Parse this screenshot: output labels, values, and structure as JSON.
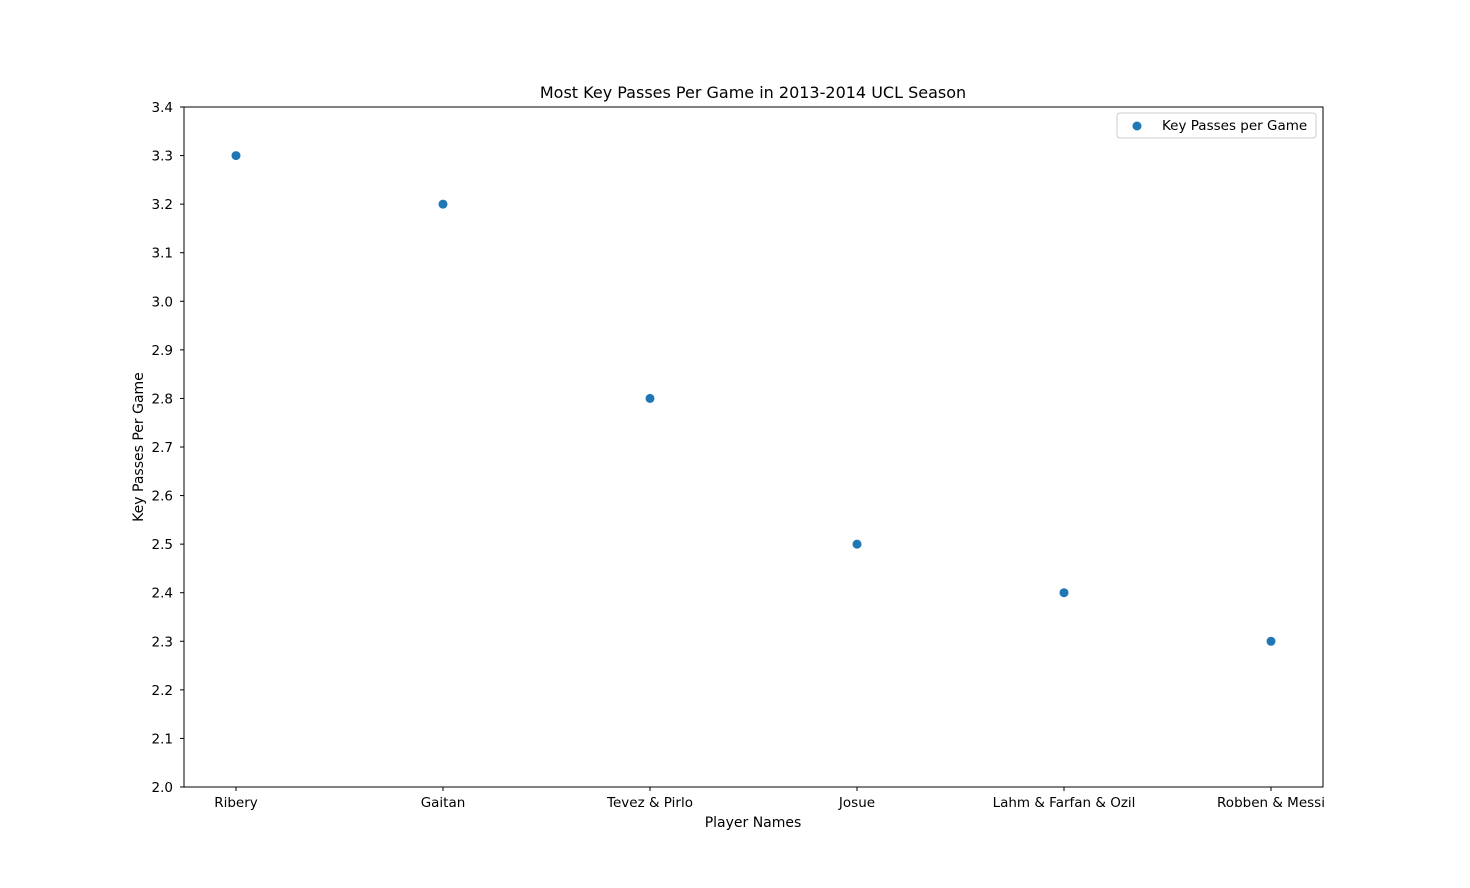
{
  "chart_data": {
    "type": "scatter",
    "title": "Most Key Passes Per Game in 2013-2014 UCL Season",
    "xlabel": "Player Names",
    "ylabel": "Key Passes Per Game",
    "categories": [
      "Ribery",
      "Gaitan",
      "Tevez & Pirlo",
      "Josue",
      "Lahm & Farfan & Ozil",
      "Robben & Messi"
    ],
    "series": [
      {
        "name": "Key Passes per Game",
        "values": [
          3.3,
          3.2,
          2.8,
          2.5,
          2.4,
          2.3
        ],
        "color": "#1f77b4"
      }
    ],
    "ylim": [
      2.0,
      3.4
    ],
    "yticks": [
      "2.0",
      "2.1",
      "2.2",
      "2.3",
      "2.4",
      "2.5",
      "2.6",
      "2.7",
      "2.8",
      "2.9",
      "3.0",
      "3.1",
      "3.2",
      "3.3",
      "3.4"
    ],
    "grid": false,
    "legend_position": "top-right"
  }
}
